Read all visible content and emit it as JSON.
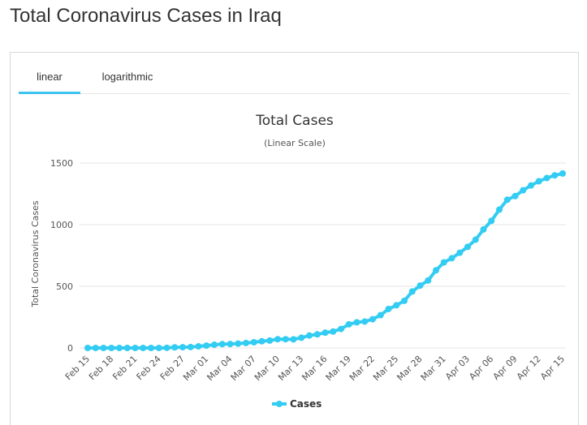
{
  "page": {
    "title": "Total Coronavirus Cases in Iraq"
  },
  "tabs": [
    {
      "label": "linear",
      "active": true
    },
    {
      "label": "logarithmic",
      "active": false
    }
  ],
  "colors": {
    "accent": "#3cc3ef",
    "series": "#33ccf2",
    "grid": "#e6e6e6"
  },
  "chart_data": {
    "type": "line",
    "title": "Total Cases",
    "subtitle": "(Linear Scale)",
    "ylabel": "Total Coronavirus Cases",
    "xlabel": "",
    "ylim": [
      0,
      1500
    ],
    "yticks": [
      0,
      500,
      1000,
      1500
    ],
    "grid": true,
    "legend": "bottom-center",
    "xtick_labels": [
      "Feb 15",
      "Feb 18",
      "Feb 21",
      "Feb 24",
      "Feb 27",
      "Mar 01",
      "Mar 04",
      "Mar 07",
      "Mar 10",
      "Mar 13",
      "Mar 16",
      "Mar 19",
      "Mar 22",
      "Mar 25",
      "Mar 28",
      "Mar 31",
      "Apr 03",
      "Apr 06",
      "Apr 09",
      "Apr 12",
      "Apr 15"
    ],
    "x": [
      "Feb 15",
      "Feb 16",
      "Feb 17",
      "Feb 18",
      "Feb 19",
      "Feb 20",
      "Feb 21",
      "Feb 22",
      "Feb 23",
      "Feb 24",
      "Feb 25",
      "Feb 26",
      "Feb 27",
      "Feb 28",
      "Feb 29",
      "Mar 01",
      "Mar 02",
      "Mar 03",
      "Mar 04",
      "Mar 05",
      "Mar 06",
      "Mar 07",
      "Mar 08",
      "Mar 09",
      "Mar 10",
      "Mar 11",
      "Mar 12",
      "Mar 13",
      "Mar 14",
      "Mar 15",
      "Mar 16",
      "Mar 17",
      "Mar 18",
      "Mar 19",
      "Mar 20",
      "Mar 21",
      "Mar 22",
      "Mar 23",
      "Mar 24",
      "Mar 25",
      "Mar 26",
      "Mar 27",
      "Mar 28",
      "Mar 29",
      "Mar 30",
      "Mar 31",
      "Apr 01",
      "Apr 02",
      "Apr 03",
      "Apr 04",
      "Apr 05",
      "Apr 06",
      "Apr 07",
      "Apr 08",
      "Apr 09",
      "Apr 10",
      "Apr 11",
      "Apr 12",
      "Apr 13",
      "Apr 14",
      "Apr 15"
    ],
    "series": [
      {
        "name": "Cases",
        "values": [
          0,
          0,
          0,
          0,
          0,
          0,
          0,
          0,
          0,
          0,
          1,
          5,
          6,
          7,
          13,
          19,
          26,
          31,
          32,
          35,
          40,
          46,
          54,
          60,
          71,
          71,
          70,
          83,
          101,
          110,
          124,
          133,
          154,
          192,
          208,
          214,
          233,
          266,
          316,
          346,
          382,
          458,
          506,
          547,
          630,
          694,
          728,
          772,
          820,
          878,
          961,
          1031,
          1122,
          1202,
          1232,
          1279,
          1318,
          1352,
          1378,
          1400,
          1415
        ]
      }
    ]
  }
}
